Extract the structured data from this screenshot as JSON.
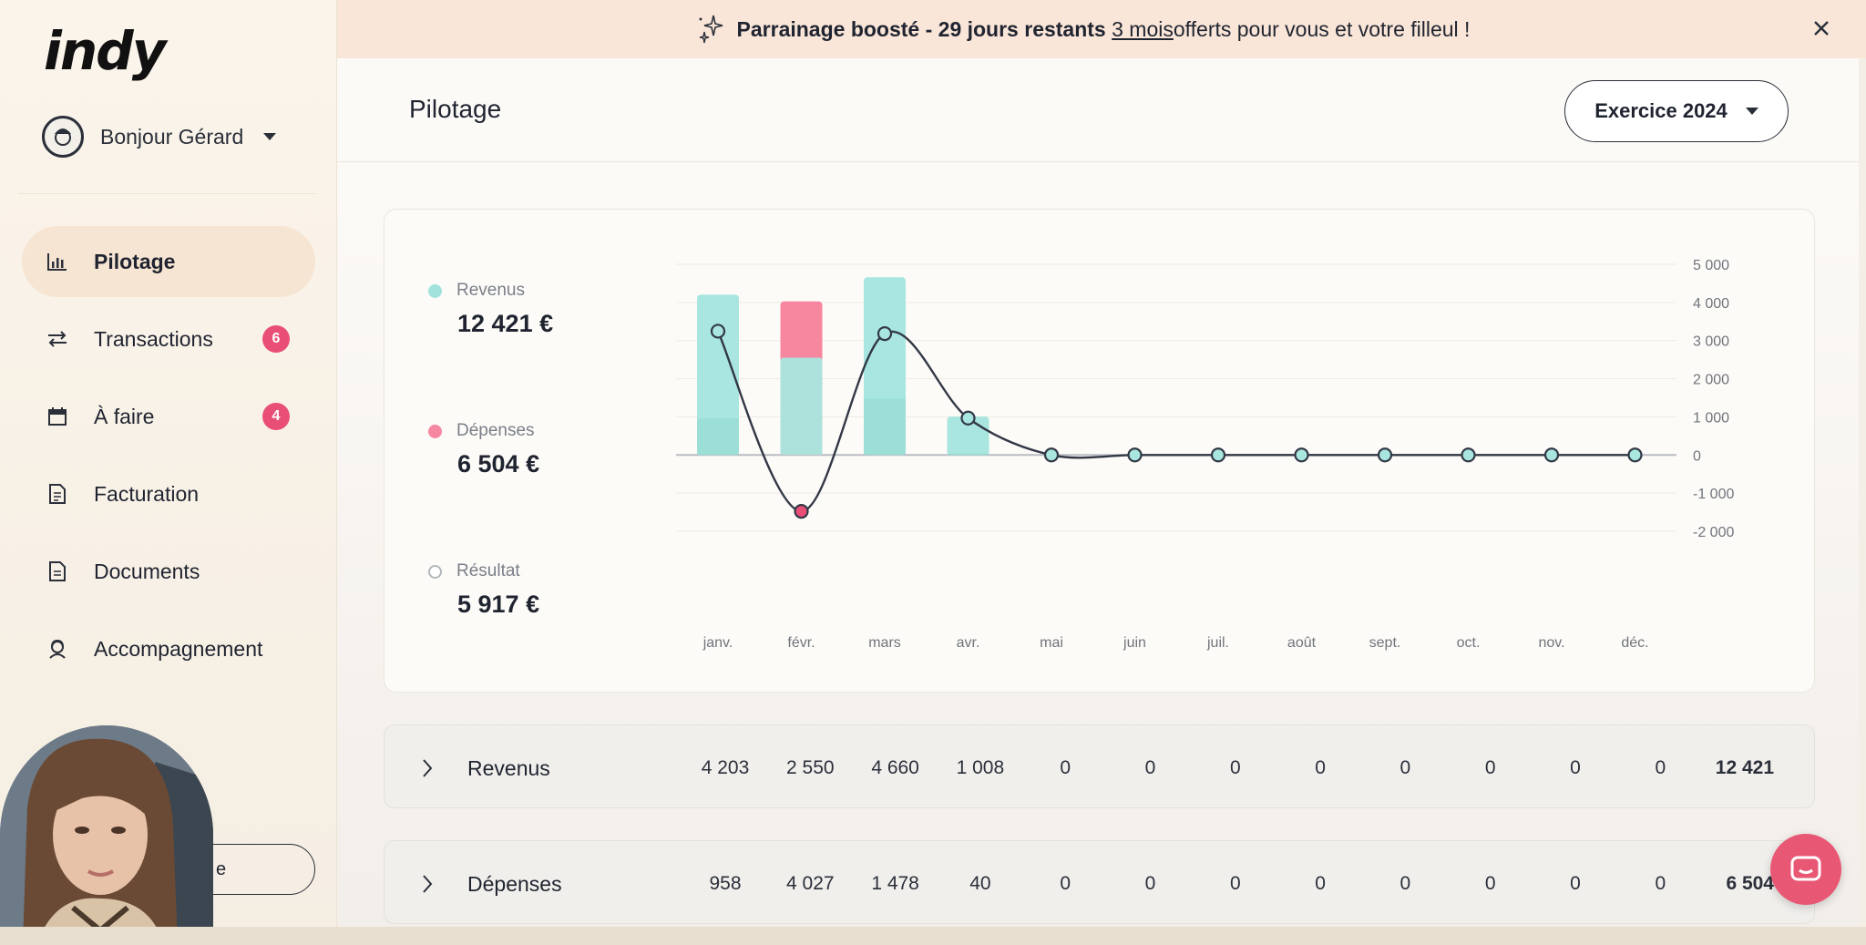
{
  "sidebar": {
    "logo": "indy",
    "user_greeting": "Bonjour Gérard",
    "items": [
      {
        "label": "Pilotage",
        "icon": "bar-chart-icon",
        "active": true,
        "badge": ""
      },
      {
        "label": "Transactions",
        "icon": "arrows-swap-icon",
        "active": false,
        "badge": "6"
      },
      {
        "label": "À faire",
        "icon": "calendar-icon",
        "active": false,
        "badge": "4"
      },
      {
        "label": "Facturation",
        "icon": "invoice-icon",
        "active": false,
        "badge": ""
      },
      {
        "label": "Documents",
        "icon": "document-icon",
        "active": false,
        "badge": ""
      },
      {
        "label": "Accompagnement",
        "icon": "support-icon",
        "active": false,
        "badge": ""
      }
    ],
    "bottom_button_partial": "e"
  },
  "banner": {
    "bold_text": "Parrainage boosté - 29 jours restants",
    "link_text": "3 mois ",
    "rest_text": "offerts pour vous et votre filleul !"
  },
  "header": {
    "title": "Pilotage",
    "exercise_label": "Exercice 2024"
  },
  "legend": {
    "revenus": {
      "label": "Revenus",
      "value": "12 421 €",
      "color": "#9fe3dc"
    },
    "depenses": {
      "label": "Dépenses",
      "value": "6 504 €",
      "color": "#f587a1"
    },
    "resultat": {
      "label": "Résultat",
      "value": "5 917 €",
      "color": "#ffffff"
    }
  },
  "chart_data": {
    "type": "bar",
    "categories": [
      "janv.",
      "févr.",
      "mars",
      "avr.",
      "mai",
      "juin",
      "juil.",
      "août",
      "sept.",
      "oct.",
      "nov.",
      "déc."
    ],
    "series": [
      {
        "name": "Revenus",
        "values": [
          4203,
          2550,
          4660,
          1008,
          0,
          0,
          0,
          0,
          0,
          0,
          0,
          0
        ],
        "color": "#a8e6df"
      },
      {
        "name": "Dépenses",
        "values": [
          958,
          4027,
          1478,
          40,
          0,
          0,
          0,
          0,
          0,
          0,
          0,
          0
        ],
        "color": "#f7879f"
      },
      {
        "name": "Résultat",
        "type": "line",
        "values": [
          3245,
          -1477,
          3182,
          968,
          0,
          0,
          0,
          0,
          0,
          0,
          0,
          0
        ]
      }
    ],
    "y_ticks": [
      "5 000",
      "4 000",
      "3 000",
      "2 000",
      "1 000",
      "0",
      "-1 000",
      "-2 000"
    ],
    "ylim": [
      -2000,
      5000
    ],
    "grid": true
  },
  "rows": [
    {
      "label": "Revenus",
      "values": [
        "4 203",
        "2 550",
        "4 660",
        "1 008",
        "0",
        "0",
        "0",
        "0",
        "0",
        "0",
        "0",
        "0"
      ],
      "total": "12 421"
    },
    {
      "label": "Dépenses",
      "values": [
        "958",
        "4 027",
        "1 478",
        "40",
        "0",
        "0",
        "0",
        "0",
        "0",
        "0",
        "0",
        "0"
      ],
      "total": "6 504"
    }
  ]
}
